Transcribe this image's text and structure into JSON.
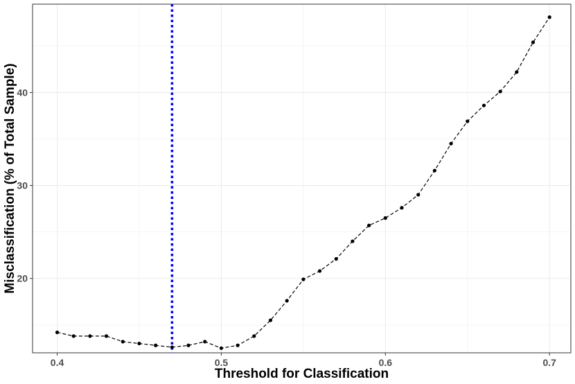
{
  "chart_data": {
    "type": "line",
    "title": "",
    "xlabel": "Threshold for Classification",
    "ylabel": "Misclassification (% of Total Sample)",
    "xlim": [
      0.385,
      0.713
    ],
    "ylim": [
      12.0,
      49.5
    ],
    "x_ticks": [
      0.4,
      0.5,
      0.6,
      0.7
    ],
    "x_tick_labels": [
      "0.4",
      "0.5",
      "0.6",
      "0.7"
    ],
    "y_ticks": [
      20,
      30,
      40
    ],
    "y_tick_labels": [
      "20",
      "30",
      "40"
    ],
    "grid": true,
    "vline": {
      "x": 0.47,
      "color": "#0000ff",
      "style": "dotted"
    },
    "series": [
      {
        "color": "#000000",
        "line_style": "dashed",
        "x": [
          0.4,
          0.41,
          0.42,
          0.43,
          0.44,
          0.45,
          0.46,
          0.47,
          0.48,
          0.49,
          0.5,
          0.51,
          0.52,
          0.53,
          0.54,
          0.55,
          0.56,
          0.57,
          0.58,
          0.59,
          0.6,
          0.61,
          0.62,
          0.63,
          0.64,
          0.65,
          0.66,
          0.67,
          0.68,
          0.69,
          0.7
        ],
        "y": [
          14.2,
          13.8,
          13.8,
          13.8,
          13.2,
          13.0,
          12.8,
          12.6,
          12.8,
          13.2,
          12.5,
          12.8,
          13.8,
          15.5,
          17.6,
          19.9,
          20.8,
          22.1,
          24.0,
          25.7,
          26.5,
          27.6,
          29.0,
          31.6,
          34.5,
          36.9,
          38.6,
          40.1,
          42.2,
          45.4,
          48.1
        ]
      }
    ]
  }
}
